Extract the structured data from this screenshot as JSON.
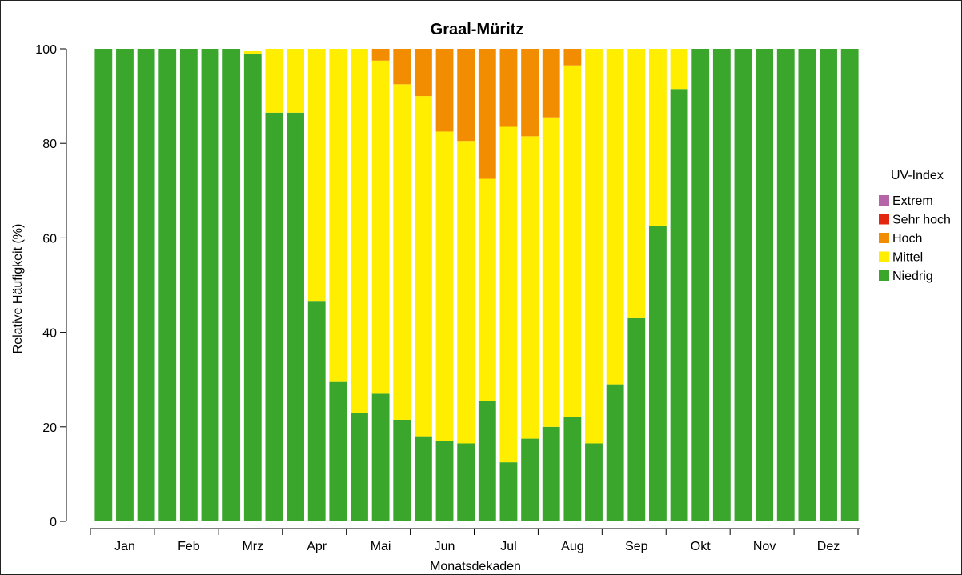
{
  "chart_data": {
    "type": "bar",
    "stacked": true,
    "title": "Graal-Müritz",
    "xlabel": "Monatsdekaden",
    "ylabel": "Relative Häufigkeit (%)",
    "ylim": [
      0,
      100
    ],
    "yticks": [
      0,
      20,
      40,
      60,
      80,
      100
    ],
    "months": [
      "Jan",
      "Feb",
      "Mrz",
      "Apr",
      "Mai",
      "Jun",
      "Jul",
      "Aug",
      "Sep",
      "Okt",
      "Nov",
      "Dez"
    ],
    "bars_per_month": 3,
    "grid": false,
    "legend": {
      "title": "UV-Index",
      "position": "right",
      "entries": [
        "Extrem",
        "Sehr hoch",
        "Hoch",
        "Mittel",
        "Niedrig"
      ]
    },
    "series": [
      {
        "name": "Niedrig",
        "color": "#3aa62c",
        "values": [
          100,
          100,
          100,
          100,
          100,
          100,
          100,
          99,
          86.5,
          86.5,
          46.5,
          29.5,
          23,
          27,
          21.5,
          18,
          17,
          16.5,
          25.5,
          12.5,
          17.5,
          20,
          22,
          16.5,
          29,
          43,
          62.5,
          91.5,
          100,
          100,
          100,
          100,
          100,
          100,
          100,
          100
        ]
      },
      {
        "name": "Mittel",
        "color": "#ffee00",
        "values": [
          0,
          0,
          0,
          0,
          0,
          0,
          0,
          0.5,
          13.5,
          13.5,
          53.5,
          70.5,
          77,
          70.5,
          71,
          72,
          65.5,
          64,
          47,
          71,
          64,
          65.5,
          74.5,
          83.5,
          71,
          57,
          37.5,
          8.5,
          0,
          0,
          0,
          0,
          0,
          0,
          0,
          0
        ]
      },
      {
        "name": "Hoch",
        "color": "#f28c00",
        "values": [
          0,
          0,
          0,
          0,
          0,
          0,
          0,
          0,
          0,
          0,
          0,
          0,
          0,
          2.5,
          7.5,
          10,
          17.5,
          19.5,
          27.5,
          16.5,
          18.5,
          14.5,
          3.5,
          0,
          0,
          0,
          0,
          0,
          0,
          0,
          0,
          0,
          0,
          0,
          0,
          0
        ]
      },
      {
        "name": "Sehr hoch",
        "color": "#e3260f",
        "values": [
          0,
          0,
          0,
          0,
          0,
          0,
          0,
          0,
          0,
          0,
          0,
          0,
          0,
          0,
          0,
          0,
          0,
          0,
          0,
          0,
          0,
          0,
          0,
          0,
          0,
          0,
          0,
          0,
          0,
          0,
          0,
          0,
          0,
          0,
          0,
          0
        ]
      },
      {
        "name": "Extrem",
        "color": "#b565a7",
        "values": [
          0,
          0,
          0,
          0,
          0,
          0,
          0,
          0,
          0,
          0,
          0,
          0,
          0,
          0,
          0,
          0,
          0,
          0,
          0,
          0,
          0,
          0,
          0,
          0,
          0,
          0,
          0,
          0,
          0,
          0,
          0,
          0,
          0,
          0,
          0,
          0
        ]
      }
    ]
  }
}
